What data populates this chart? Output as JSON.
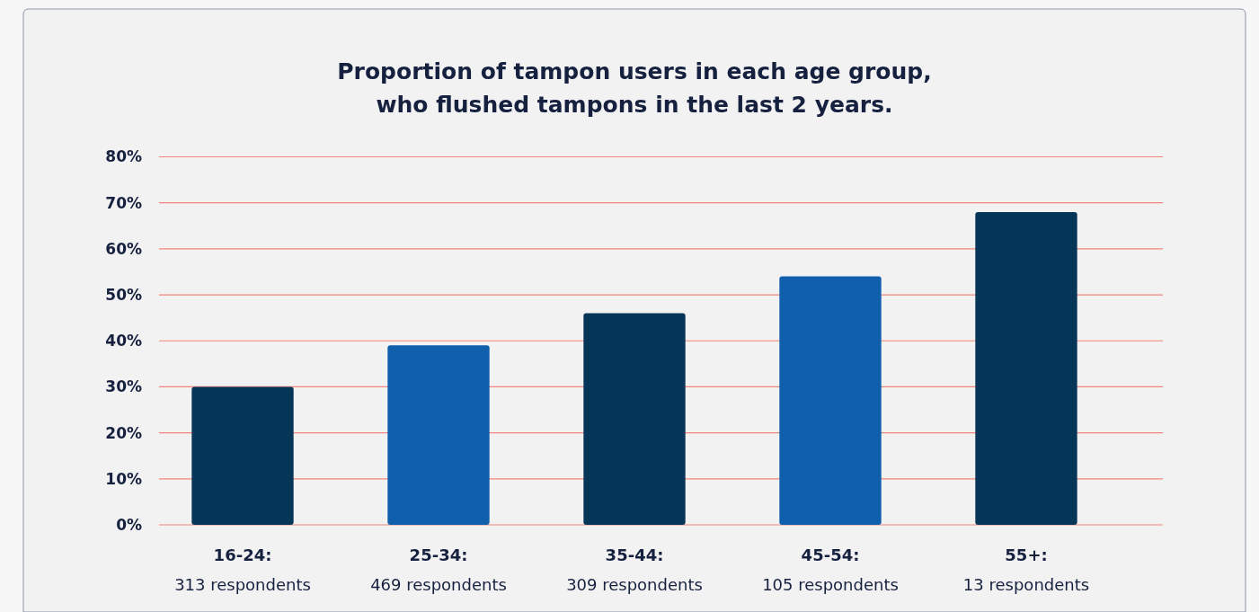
{
  "chart_data": {
    "type": "bar",
    "title": "Proportion of tampon users in each age group,\nwho flushed tampons in the last 2 years.",
    "categories": [
      "16-24:\n313 respondents",
      "25-34:\n469 respondents",
      "35-44:\n309 respondents",
      "45-54:\n105 respondents",
      "55+:\n13 respondents"
    ],
    "values": [
      30,
      39,
      46,
      54,
      68
    ],
    "colors": [
      "#063657",
      "#0f5fad",
      "#063657",
      "#0f5fad",
      "#063657"
    ],
    "ylim": [
      0,
      80
    ],
    "yticks": [
      {
        "value": 0,
        "label": "0%"
      },
      {
        "value": 10,
        "label": "10%"
      },
      {
        "value": 20,
        "label": "20%"
      },
      {
        "value": 30,
        "label": "30%"
      },
      {
        "value": 40,
        "label": "40%"
      },
      {
        "value": 50,
        "label": "50%"
      },
      {
        "value": 60,
        "label": "60%"
      },
      {
        "value": 70,
        "label": "70%"
      },
      {
        "value": 80,
        "label": "80%"
      }
    ],
    "grid": true
  }
}
